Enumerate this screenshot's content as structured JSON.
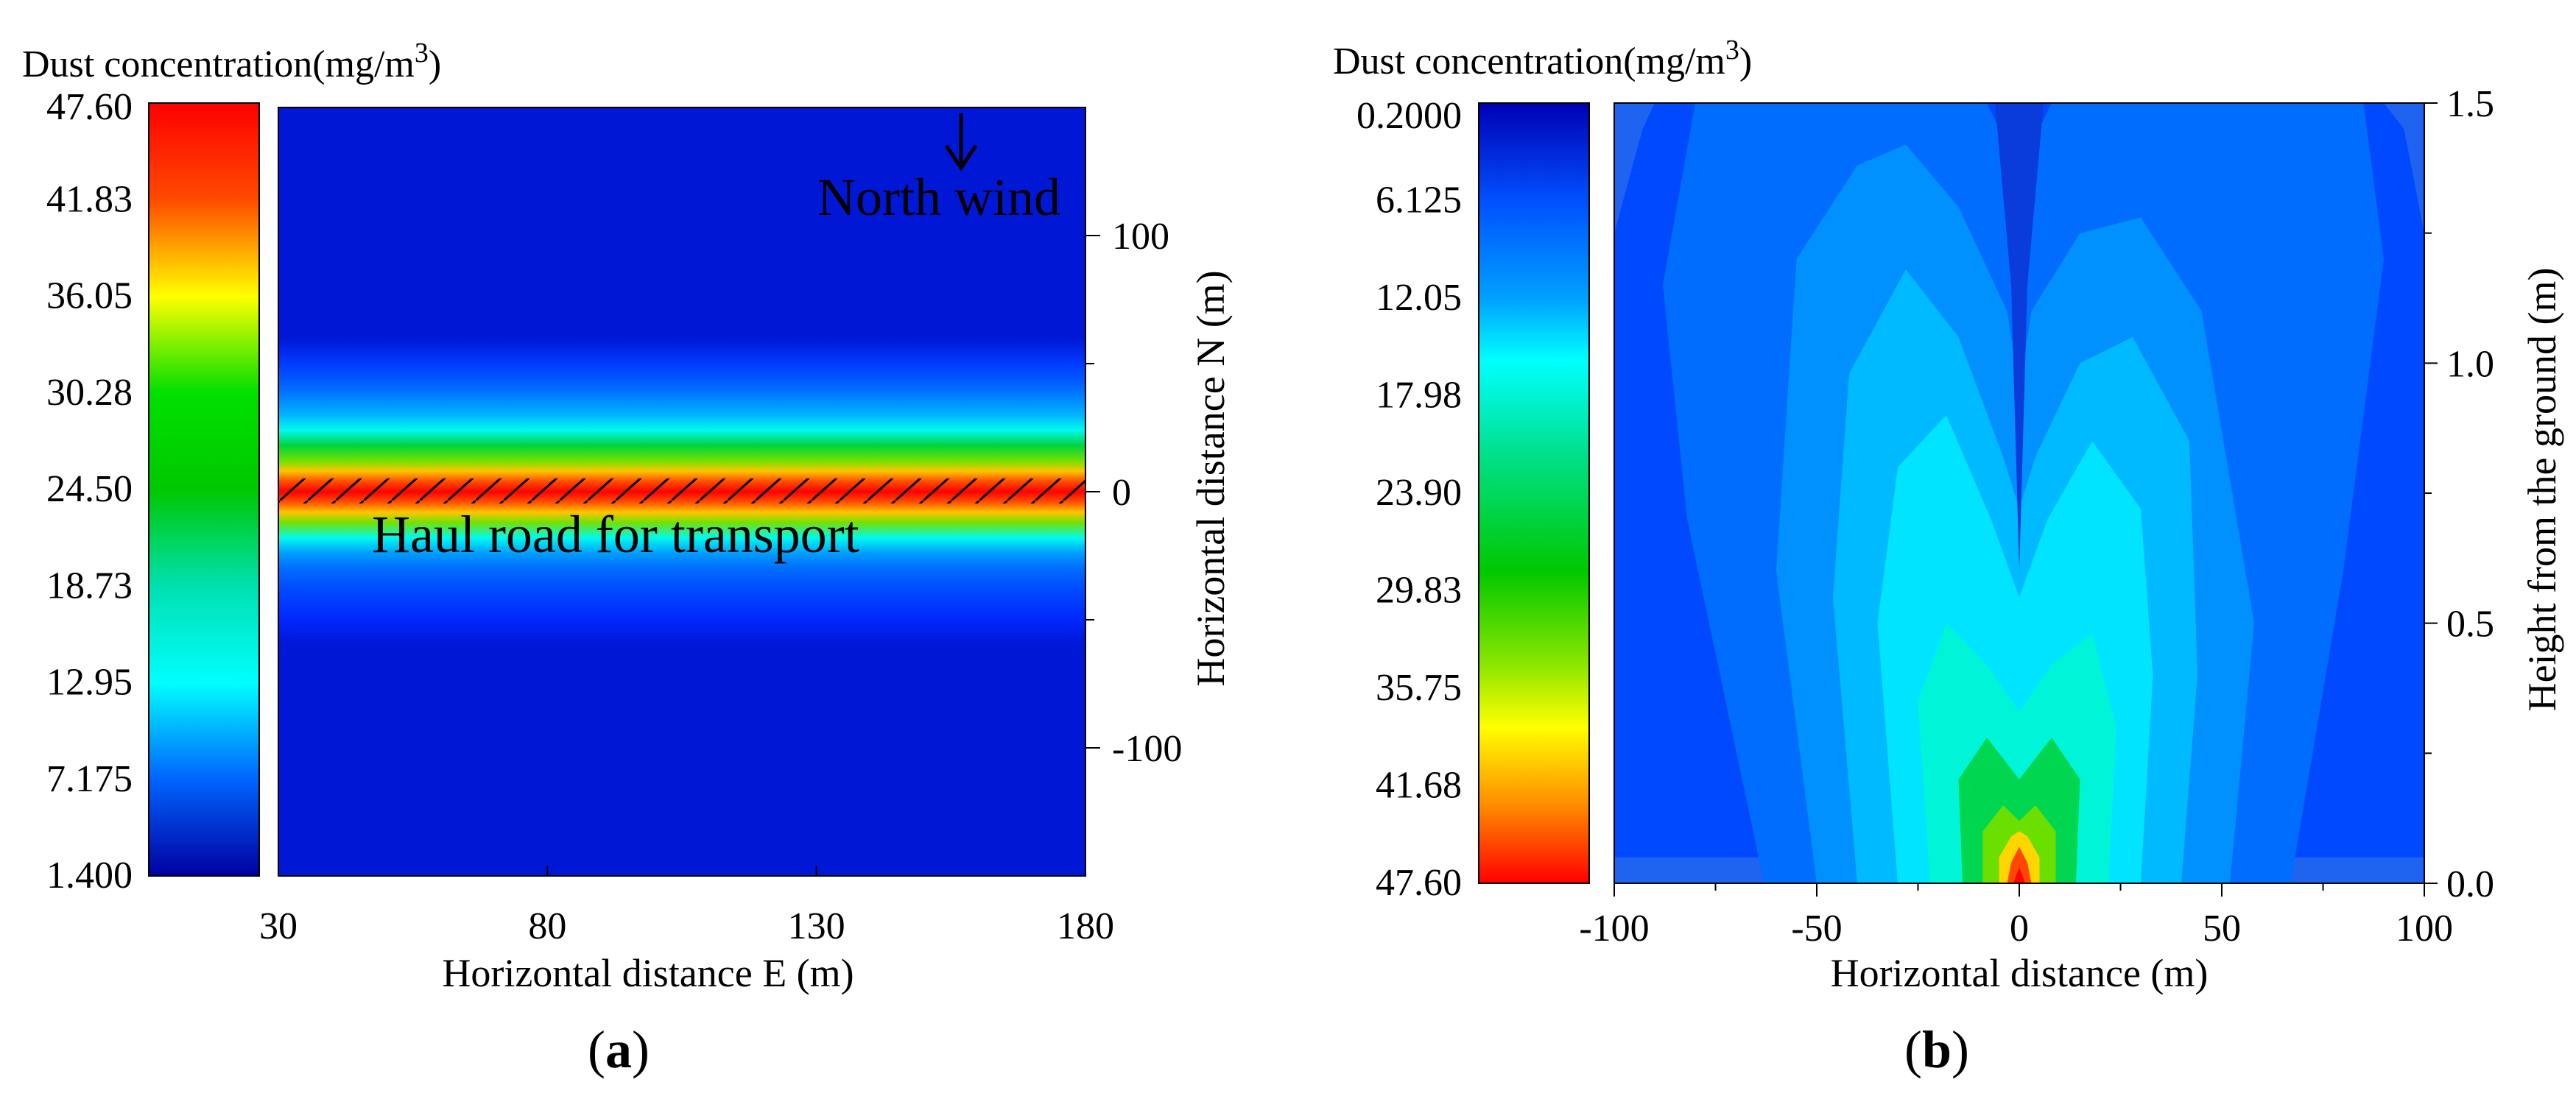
{
  "chart_data": [
    {
      "id": "a",
      "type": "heatmap",
      "panel_label": "a",
      "colorbar": {
        "title": "Dust concentration(mg/m",
        "title_unit_sup": "3",
        "title_close": ")",
        "ticks": [
          "47.60",
          "41.83",
          "36.05",
          "30.28",
          "24.50",
          "18.73",
          "12.95",
          "7.175",
          "1.400"
        ],
        "max": 47.6,
        "min": 1.4
      },
      "xlabel": "Horizontal distance E (m)",
      "ylabel": "Horizontal distance  N (m)",
      "x_ticks": [
        30,
        80,
        130,
        180
      ],
      "xlim": [
        30,
        180
      ],
      "y_ticks": [
        100,
        0,
        -100
      ],
      "ylim": [
        -150,
        150
      ],
      "annotations": {
        "wind": "North wind",
        "road": "Haul road for transport"
      },
      "profile_N_vs_concentration": {
        "N": [
          150,
          60,
          50,
          40,
          30,
          24,
          18,
          12,
          8,
          4,
          0,
          -4,
          -8,
          -12,
          -18,
          -24,
          -30,
          -40,
          -50,
          -60,
          -150
        ],
        "c": [
          3.5,
          3.5,
          6.0,
          8.5,
          12.0,
          16.0,
          23.0,
          30.0,
          38.0,
          44.0,
          47.6,
          44.0,
          38.0,
          30.0,
          16.0,
          11.0,
          8.5,
          6.5,
          5.0,
          3.5,
          3.5
        ]
      }
    },
    {
      "id": "b",
      "type": "heatmap",
      "panel_label": "b",
      "colorbar": {
        "title": "Dust concentration(mg/m",
        "title_unit_sup": "3",
        "title_close": ")",
        "ticks": [
          "0.2000",
          "6.125",
          "12.05",
          "17.98",
          "23.90",
          "29.83",
          "35.75",
          "41.68",
          "47.60"
        ],
        "max": 47.6,
        "min": 0.2
      },
      "xlabel": "Horizontal distance (m)",
      "ylabel": "Height from the ground (m)",
      "x_ticks": [
        -100,
        -50,
        0,
        50,
        100
      ],
      "xlim": [
        -100,
        100
      ],
      "y_ticks": [
        "0.0",
        "0.5",
        "1.0",
        "1.5"
      ],
      "ylim": [
        0,
        1.5
      ],
      "plume_contours": [
        {
          "level": 3.0,
          "points": [
            [
              -100,
              0.05
            ],
            [
              -100,
              1.25
            ],
            [
              -93,
              1.45
            ],
            [
              -90,
              1.5
            ],
            [
              90,
              1.5
            ],
            [
              95,
              1.45
            ],
            [
              100,
              1.25
            ],
            [
              100,
              0.05
            ]
          ]
        },
        {
          "level": 5.0,
          "points": [
            [
              -63,
              0
            ],
            [
              -82,
              0.7
            ],
            [
              -88,
              1.15
            ],
            [
              -80,
              1.5
            ],
            [
              -8,
              1.5
            ],
            [
              -3,
              1.42
            ],
            [
              0,
              1.35
            ],
            [
              3,
              1.42
            ],
            [
              8,
              1.5
            ],
            [
              85,
              1.5
            ],
            [
              90,
              1.2
            ],
            [
              80,
              0.6
            ],
            [
              67,
              0
            ]
          ]
        },
        {
          "level": 7.0,
          "points": [
            [
              -50,
              0
            ],
            [
              -60,
              0.6
            ],
            [
              -55,
              1.2
            ],
            [
              -40,
              1.38
            ],
            [
              -28,
              1.42
            ],
            [
              -15,
              1.3
            ],
            [
              -3,
              1.1
            ],
            [
              0,
              0.95
            ],
            [
              3,
              1.1
            ],
            [
              15,
              1.25
            ],
            [
              30,
              1.28
            ],
            [
              45,
              1.1
            ],
            [
              58,
              0.5
            ],
            [
              52,
              0
            ]
          ]
        },
        {
          "level": 9.0,
          "points": [
            [
              -40,
              0
            ],
            [
              -46,
              0.55
            ],
            [
              -42,
              0.98
            ],
            [
              -28,
              1.18
            ],
            [
              -15,
              1.05
            ],
            [
              -4,
              0.82
            ],
            [
              0,
              0.72
            ],
            [
              4,
              0.82
            ],
            [
              15,
              1.0
            ],
            [
              28,
              1.05
            ],
            [
              42,
              0.85
            ],
            [
              44,
              0.4
            ],
            [
              40,
              0
            ]
          ]
        },
        {
          "level": 11.0,
          "points": [
            [
              -30,
              0
            ],
            [
              -35,
              0.5
            ],
            [
              -30,
              0.8
            ],
            [
              -18,
              0.9
            ],
            [
              -7,
              0.7
            ],
            [
              0,
              0.55
            ],
            [
              7,
              0.7
            ],
            [
              18,
              0.85
            ],
            [
              30,
              0.72
            ],
            [
              33,
              0.4
            ],
            [
              30,
              0
            ]
          ]
        },
        {
          "level": 14.0,
          "points": [
            [
              -22,
              0
            ],
            [
              -25,
              0.35
            ],
            [
              -18,
              0.5
            ],
            [
              -8,
              0.42
            ],
            [
              0,
              0.33
            ],
            [
              8,
              0.42
            ],
            [
              18,
              0.48
            ],
            [
              24,
              0.3
            ],
            [
              22,
              0
            ]
          ]
        },
        {
          "level": 20.0,
          "points": [
            [
              -14,
              0
            ],
            [
              -15,
              0.2
            ],
            [
              -8,
              0.28
            ],
            [
              0,
              0.2
            ],
            [
              8,
              0.28
            ],
            [
              15,
              0.2
            ],
            [
              14,
              0
            ]
          ]
        },
        {
          "level": 28.0,
          "points": [
            [
              -9,
              0
            ],
            [
              -9,
              0.1
            ],
            [
              -4,
              0.15
            ],
            [
              0,
              0.12
            ],
            [
              4,
              0.15
            ],
            [
              9,
              0.1
            ],
            [
              9,
              0
            ]
          ]
        },
        {
          "level": 36.0,
          "points": [
            [
              -5,
              0
            ],
            [
              -5,
              0.05
            ],
            [
              -2,
              0.09
            ],
            [
              0,
              0.1
            ],
            [
              2,
              0.09
            ],
            [
              5,
              0.05
            ],
            [
              5,
              0
            ]
          ]
        },
        {
          "level": 44.0,
          "points": [
            [
              -3,
              0
            ],
            [
              -2,
              0.04
            ],
            [
              0,
              0.07
            ],
            [
              2,
              0.04
            ],
            [
              3,
              0
            ]
          ]
        },
        {
          "level": 47.6,
          "points": [
            [
              -1.5,
              0
            ],
            [
              0,
              0.03
            ],
            [
              1.5,
              0
            ]
          ]
        }
      ]
    }
  ]
}
